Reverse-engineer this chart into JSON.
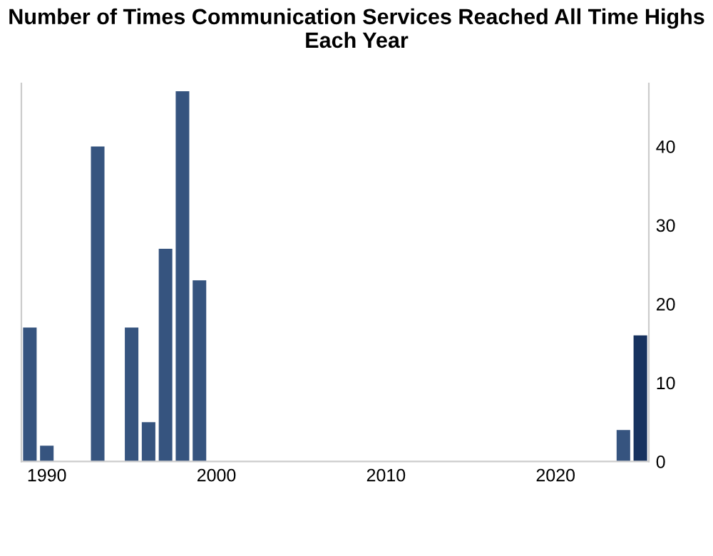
{
  "chart_data": {
    "type": "bar",
    "title": "Number of Times Communication Services Reached All Time Highs\nEach Year",
    "x": [
      1989,
      1990,
      1993,
      1995,
      1996,
      1997,
      1998,
      1999,
      2024,
      2025
    ],
    "values": [
      17,
      2,
      40,
      17,
      5,
      27,
      47,
      23,
      4,
      16
    ],
    "colors": [
      "#36547f",
      "#36547f",
      "#36547f",
      "#36547f",
      "#36547f",
      "#36547f",
      "#36547f",
      "#36547f",
      "#36547f",
      "#17325f"
    ],
    "xlim": [
      1988.5,
      2025.5
    ],
    "xticks": [
      1990,
      2000,
      2010,
      2020
    ],
    "ylim": [
      0,
      48
    ],
    "yticks": [
      0,
      10,
      20,
      30,
      40
    ],
    "grid": false
  }
}
